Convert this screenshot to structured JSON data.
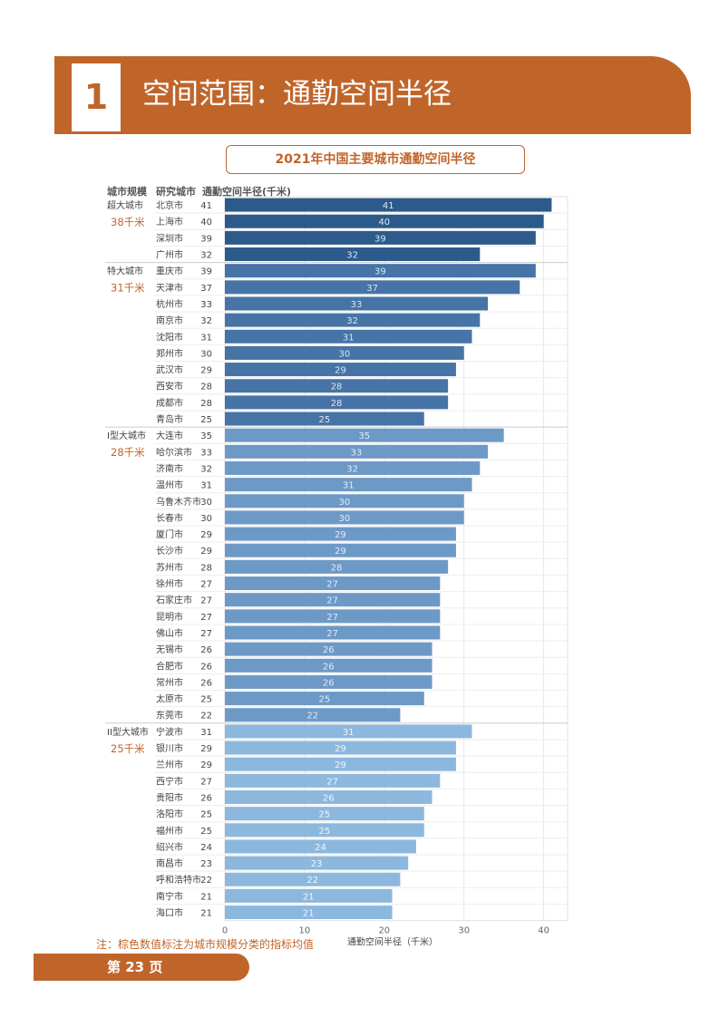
{
  "header": {
    "number": "1",
    "title": "空间范围：通勤空间半径"
  },
  "chart_data": {
    "type": "bar",
    "orientation": "horizontal",
    "title": "2021年中国主要城市通勤空间半径",
    "column_headers": [
      "城市规模",
      "研究城市",
      "通勤空间半径(千米)"
    ],
    "xlabel": "通勤空间半径（千米）",
    "xlim": [
      0,
      43
    ],
    "xticks": [
      0,
      10,
      20,
      30,
      40
    ],
    "groups": [
      {
        "name": "超大城市",
        "avg_label": "38千米",
        "color": "#2C5A8A",
        "label_color": "#DCE6F2",
        "cities": [
          "北京市",
          "上海市",
          "深圳市",
          "广州市"
        ],
        "values": [
          41,
          40,
          39,
          32
        ]
      },
      {
        "name": "特大城市",
        "avg_label": "31千米",
        "color": "#4674A6",
        "label_color": "#DCE6F2",
        "cities": [
          "重庆市",
          "天津市",
          "杭州市",
          "南京市",
          "沈阳市",
          "郑州市",
          "武汉市",
          "西安市",
          "成都市",
          "青岛市"
        ],
        "values": [
          39,
          37,
          33,
          32,
          31,
          30,
          29,
          28,
          28,
          25
        ]
      },
      {
        "name": "I型大城市",
        "avg_label": "28千米",
        "color": "#6D99C7",
        "label_color": "#E3EBF5",
        "cities": [
          "大连市",
          "哈尔滨市",
          "济南市",
          "温州市",
          "乌鲁木齐市",
          "长春市",
          "厦门市",
          "长沙市",
          "苏州市",
          "徐州市",
          "石家庄市",
          "昆明市",
          "佛山市",
          "无锡市",
          "合肥市",
          "常州市",
          "太原市",
          "东莞市"
        ],
        "values": [
          35,
          33,
          32,
          31,
          30,
          30,
          29,
          29,
          28,
          27,
          27,
          27,
          27,
          26,
          26,
          26,
          25,
          22
        ]
      },
      {
        "name": "II型大城市",
        "avg_label": "25千米",
        "color": "#8DB8DE",
        "label_color": "#EEF4FA",
        "cities": [
          "宁波市",
          "银川市",
          "兰州市",
          "西宁市",
          "贵阳市",
          "洛阳市",
          "福州市",
          "绍兴市",
          "南昌市",
          "呼和浩特市",
          "南宁市",
          "海口市"
        ],
        "values": [
          31,
          29,
          29,
          27,
          26,
          25,
          25,
          24,
          23,
          22,
          21,
          21
        ]
      }
    ]
  },
  "footnote": "注：棕色数值标注为城市规模分类的指标均值",
  "footer": {
    "page_label": "第 23 页"
  }
}
